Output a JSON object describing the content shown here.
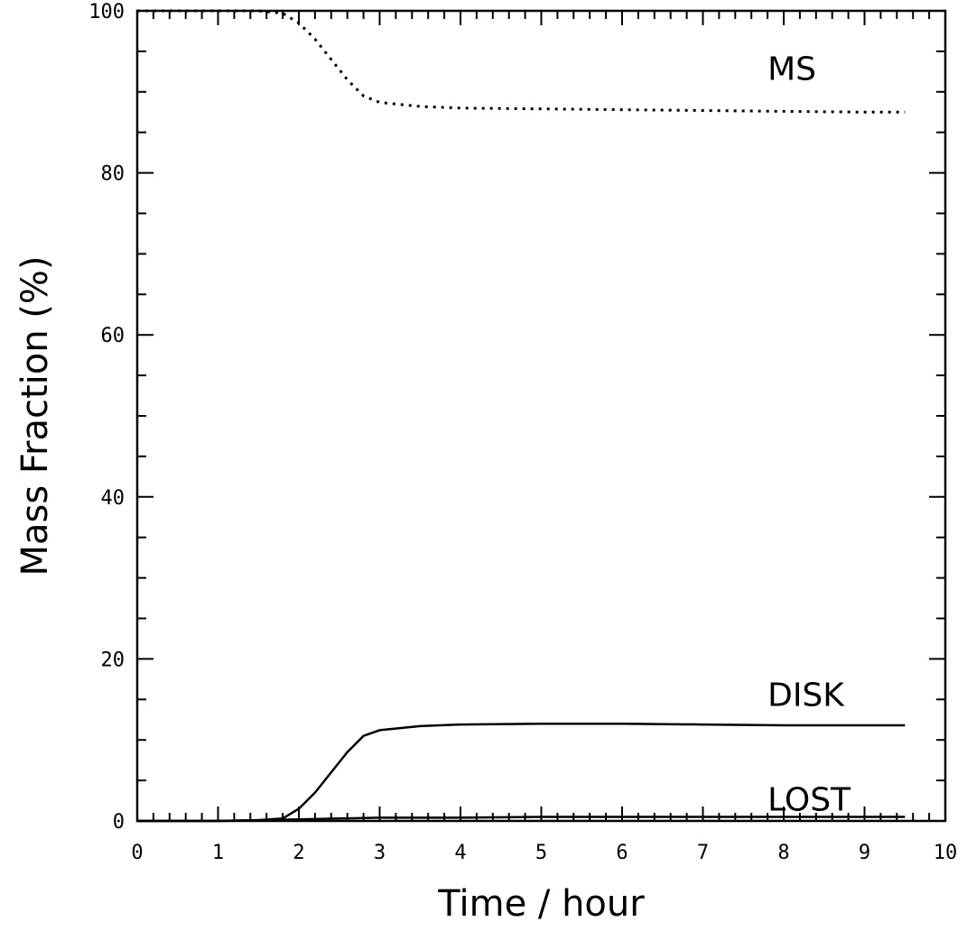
{
  "chart_data": {
    "type": "line",
    "title": "",
    "xlabel": "Time / hour",
    "ylabel": "Mass Fraction (%)",
    "xlim": [
      0,
      10
    ],
    "ylim": [
      0,
      100
    ],
    "x_ticks": [
      "0",
      "1",
      "2",
      "3",
      "4",
      "5",
      "6",
      "7",
      "8",
      "9",
      "10"
    ],
    "y_ticks": [
      "0",
      "20",
      "40",
      "60",
      "80",
      "100"
    ],
    "grid": false,
    "legend": "inline labels",
    "series": [
      {
        "name": "MS",
        "style": "dotted",
        "x": [
          0,
          1.0,
          1.5,
          1.8,
          2.0,
          2.2,
          2.4,
          2.6,
          2.8,
          3.0,
          3.5,
          4.0,
          5.0,
          6.0,
          7.0,
          8.0,
          9.0,
          9.5
        ],
        "y": [
          100,
          100,
          100,
          99.7,
          98.5,
          96.5,
          94.0,
          91.5,
          89.5,
          88.7,
          88.2,
          88.0,
          87.9,
          87.8,
          87.7,
          87.6,
          87.5,
          87.5
        ]
      },
      {
        "name": "DISK",
        "style": "solid",
        "x": [
          0,
          1.0,
          1.5,
          1.8,
          2.0,
          2.2,
          2.4,
          2.6,
          2.8,
          3.0,
          3.5,
          4.0,
          5.0,
          6.0,
          7.0,
          8.0,
          9.0,
          9.5
        ],
        "y": [
          0,
          0,
          0.1,
          0.3,
          1.5,
          3.5,
          6.0,
          8.5,
          10.5,
          11.2,
          11.7,
          11.9,
          12.0,
          12.0,
          11.9,
          11.8,
          11.8,
          11.8
        ]
      },
      {
        "name": "LOST",
        "style": "solid",
        "x": [
          0,
          1.0,
          2.0,
          3.0,
          4.0,
          5.0,
          6.0,
          7.0,
          8.0,
          9.0,
          9.5
        ],
        "y": [
          0,
          0,
          0.2,
          0.4,
          0.4,
          0.5,
          0.5,
          0.5,
          0.5,
          0.5,
          0.5
        ]
      }
    ],
    "label_positions": [
      {
        "text": "MS",
        "x": 7.8,
        "y": 91.5
      },
      {
        "text": "DISK",
        "x": 7.8,
        "y": 14.2
      },
      {
        "text": "LOST",
        "x": 7.8,
        "y": 1.3
      }
    ]
  }
}
